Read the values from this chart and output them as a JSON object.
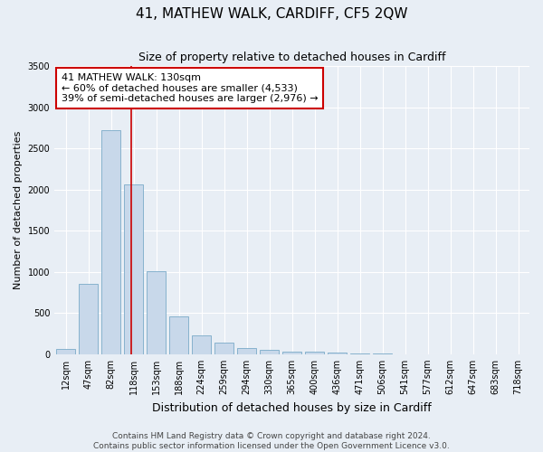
{
  "title": "41, MATHEW WALK, CARDIFF, CF5 2QW",
  "subtitle": "Size of property relative to detached houses in Cardiff",
  "xlabel": "Distribution of detached houses by size in Cardiff",
  "ylabel": "Number of detached properties",
  "footer_line1": "Contains HM Land Registry data © Crown copyright and database right 2024.",
  "footer_line2": "Contains public sector information licensed under the Open Government Licence v3.0.",
  "bar_labels": [
    "12sqm",
    "47sqm",
    "82sqm",
    "118sqm",
    "153sqm",
    "188sqm",
    "224sqm",
    "259sqm",
    "294sqm",
    "330sqm",
    "365sqm",
    "400sqm",
    "436sqm",
    "471sqm",
    "506sqm",
    "541sqm",
    "577sqm",
    "612sqm",
    "647sqm",
    "683sqm",
    "718sqm"
  ],
  "bar_values": [
    60,
    850,
    2720,
    2060,
    1010,
    460,
    230,
    145,
    70,
    55,
    35,
    28,
    18,
    10,
    5,
    3,
    2,
    1,
    0,
    0,
    0
  ],
  "bar_color": "#c8d8ea",
  "bar_edgecolor": "#7aaac8",
  "annotation_line1": "41 MATHEW WALK: 130sqm",
  "annotation_line2": "← 60% of detached houses are smaller (4,533)",
  "annotation_line3": "39% of semi-detached houses are larger (2,976) →",
  "annotation_box_color": "#ffffff",
  "annotation_box_edgecolor": "#cc0000",
  "vline_x": 2.88,
  "vline_color": "#cc0000",
  "ylim": [
    0,
    3500
  ],
  "yticks": [
    0,
    500,
    1000,
    1500,
    2000,
    2500,
    3000,
    3500
  ],
  "background_color": "#e8eef5",
  "plot_background": "#e8eef5",
  "grid_color": "#ffffff",
  "title_fontsize": 11,
  "subtitle_fontsize": 9,
  "xlabel_fontsize": 9,
  "ylabel_fontsize": 8,
  "tick_fontsize": 7,
  "annotation_fontsize": 8,
  "footer_fontsize": 6.5
}
